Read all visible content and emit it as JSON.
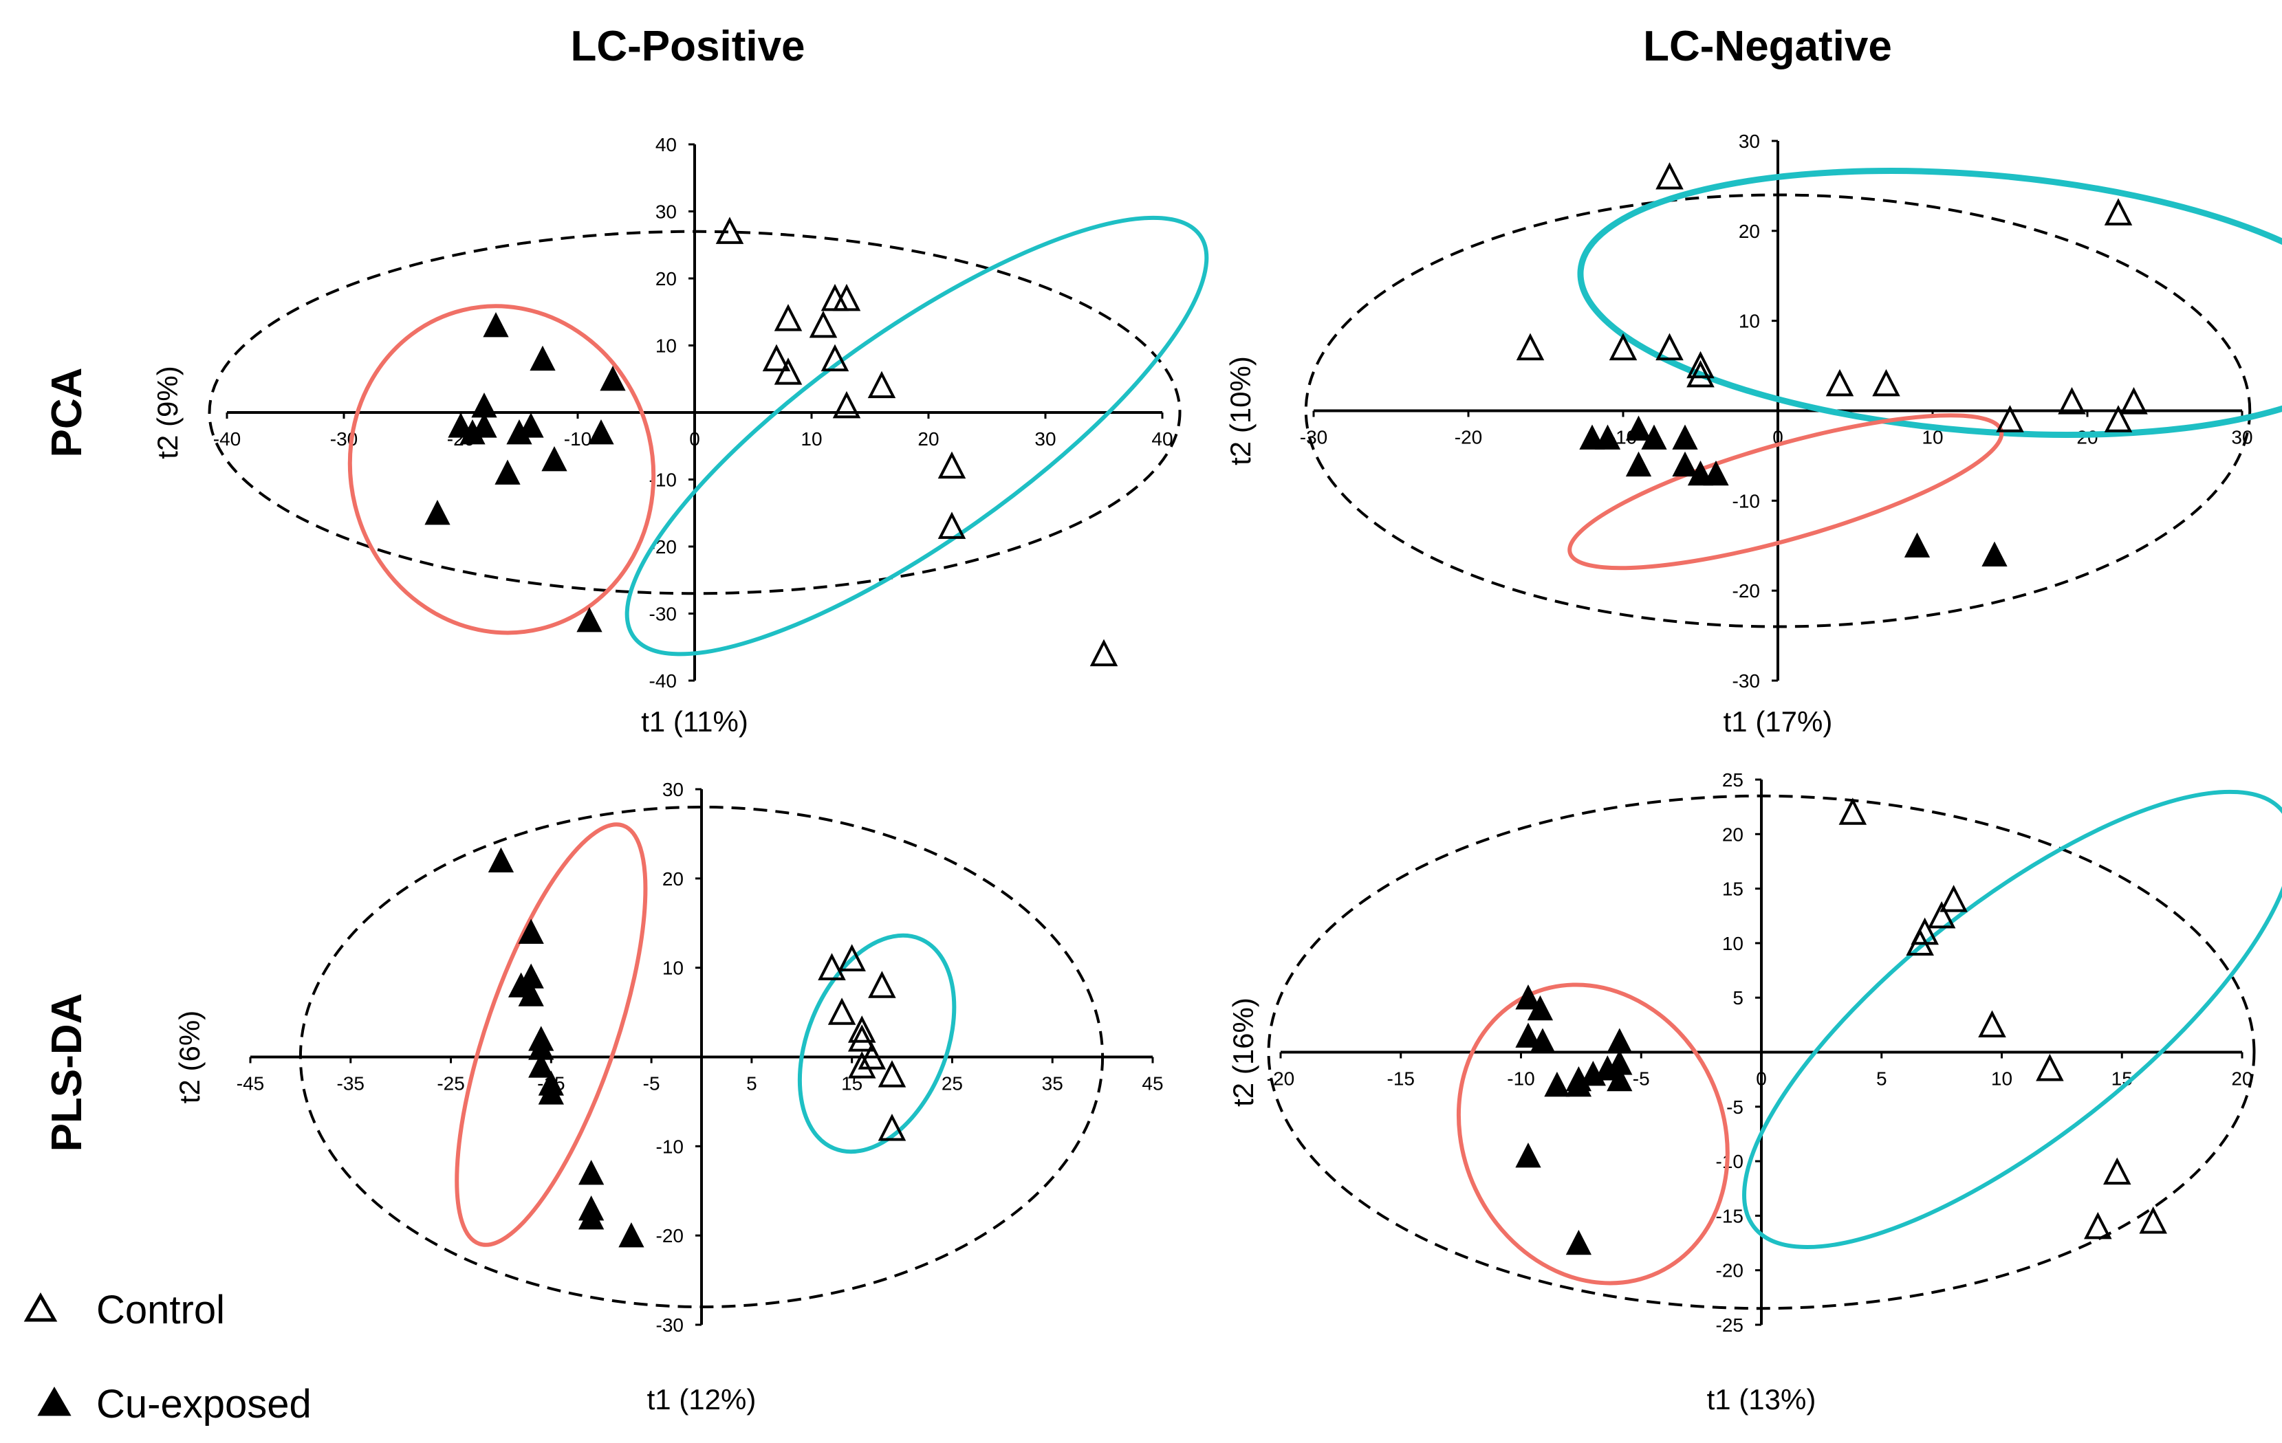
{
  "columns": [
    "LC-Positive",
    "LC-Negative"
  ],
  "rows": [
    "PCA",
    "PLS-DA"
  ],
  "legend": [
    {
      "label": "Control",
      "marker": "open-triangle"
    },
    {
      "label": "Cu-exposed",
      "marker": "filled-triangle"
    }
  ],
  "colors": {
    "control_group": "#1ebfc4",
    "exposed_group": "#f07066",
    "axis": "#000000",
    "hotelling": "#000000"
  },
  "chart_data": [
    {
      "type": "scatter",
      "method": "PCA",
      "title": "LC-Positive",
      "xlabel": "t1 (11%)",
      "ylabel": "t2 (9%)",
      "xlim": [
        -40,
        40
      ],
      "ylim": [
        -40,
        40
      ],
      "xticks": [
        -40,
        -30,
        -20,
        -10,
        0,
        10,
        20,
        30,
        40
      ],
      "yticks": [
        -40,
        -30,
        -20,
        -10,
        0,
        10,
        20,
        30,
        40
      ],
      "hotelling_ellipse": {
        "cx": 0,
        "cy": 0,
        "rx": 41.5,
        "ry": 27
      },
      "series": [
        {
          "name": "Control",
          "points": [
            [
              3,
              27
            ],
            [
              8,
              14
            ],
            [
              7,
              8
            ],
            [
              8,
              6
            ],
            [
              11,
              13
            ],
            [
              12,
              17
            ],
            [
              12,
              8
            ],
            [
              13,
              17
            ],
            [
              13,
              1
            ],
            [
              16,
              4
            ],
            [
              22,
              -8
            ],
            [
              22,
              -17
            ],
            [
              35,
              -36
            ]
          ]
        },
        {
          "name": "Cu-exposed",
          "points": [
            [
              -17,
              13
            ],
            [
              -13,
              8
            ],
            [
              -7,
              5
            ],
            [
              -18,
              1
            ],
            [
              -20,
              -2
            ],
            [
              -18,
              -2
            ],
            [
              -14,
              -2
            ],
            [
              -15,
              -3
            ],
            [
              -8,
              -3
            ],
            [
              -19,
              -3
            ],
            [
              -12,
              -7
            ],
            [
              -16,
              -9
            ],
            [
              -22,
              -15
            ],
            [
              -9,
              -31
            ]
          ]
        }
      ],
      "group_ellipses": [
        {
          "group": "Control",
          "cx": 19,
          "cy": -3.5,
          "rx": 38.5,
          "ry": 10.5,
          "angle": 51
        },
        {
          "group": "Cu-exposed",
          "cx": -16.5,
          "cy": -8.5,
          "rx": 24,
          "ry": 13,
          "angle": 98
        }
      ]
    },
    {
      "type": "scatter",
      "method": "PCA",
      "title": "LC-Negative",
      "xlabel": "t1 (17%)",
      "ylabel": "t2 (10%)",
      "xlim": [
        -30,
        30
      ],
      "ylim": [
        -30,
        30
      ],
      "xticks": [
        -30,
        -20,
        -10,
        0,
        10,
        20,
        30
      ],
      "yticks": [
        -30,
        -20,
        -10,
        0,
        10,
        20,
        30
      ],
      "hotelling_ellipse": {
        "cx": 0,
        "cy": 0,
        "rx": 30.5,
        "ry": 24
      },
      "series": [
        {
          "name": "Control",
          "points": [
            [
              -7,
              26
            ],
            [
              22,
              22
            ],
            [
              -16,
              7
            ],
            [
              -10,
              7
            ],
            [
              -7,
              7
            ],
            [
              -5,
              5
            ],
            [
              -5,
              4
            ],
            [
              4,
              3
            ],
            [
              7,
              3
            ],
            [
              15,
              -1
            ],
            [
              19,
              1
            ],
            [
              23,
              1
            ],
            [
              22,
              -1
            ]
          ]
        },
        {
          "name": "Cu-exposed",
          "points": [
            [
              -12,
              -3
            ],
            [
              -11,
              -3
            ],
            [
              -9,
              -2
            ],
            [
              -8,
              -3
            ],
            [
              -6,
              -3
            ],
            [
              -9,
              -6
            ],
            [
              -6,
              -6
            ],
            [
              -5,
              -7
            ],
            [
              -4,
              -7
            ],
            [
              9,
              -15
            ],
            [
              14,
              -16
            ]
          ]
        }
      ],
      "group_ellipses": [
        {
          "group": "Control",
          "cx": 13,
          "cy": 12,
          "rx": 26,
          "ry": 14,
          "angle": -8
        },
        {
          "group": "Cu-exposed",
          "cx": 0.5,
          "cy": -9,
          "rx": 15.5,
          "ry": 4.5,
          "angle": 26
        }
      ]
    },
    {
      "type": "scatter",
      "method": "PLS-DA",
      "title": "LC-Positive",
      "xlabel": "t1 (12%)",
      "ylabel": "t2 (6%)",
      "xlim": [
        -45,
        45
      ],
      "ylim": [
        -30,
        30
      ],
      "xticks": [
        -45,
        -35,
        -25,
        -15,
        -5,
        5,
        15,
        25,
        35,
        45
      ],
      "yticks": [
        -30,
        -20,
        -10,
        0,
        10,
        20,
        30
      ],
      "hotelling_ellipse": {
        "cx": 0,
        "cy": 0,
        "rx": 40,
        "ry": 28
      },
      "series": [
        {
          "name": "Control",
          "points": [
            [
              15,
              11
            ],
            [
              13,
              10
            ],
            [
              18,
              8
            ],
            [
              14,
              5
            ],
            [
              16,
              3
            ],
            [
              16,
              2
            ],
            [
              17,
              0
            ],
            [
              19,
              -2
            ],
            [
              16,
              -1
            ],
            [
              19,
              -8
            ]
          ]
        },
        {
          "name": "Cu-exposed",
          "points": [
            [
              -20,
              22
            ],
            [
              -17,
              14
            ],
            [
              -17,
              9
            ],
            [
              -18,
              8
            ],
            [
              -17,
              7
            ],
            [
              -16,
              2
            ],
            [
              -16,
              1
            ],
            [
              -16,
              -1
            ],
            [
              -15,
              -3
            ],
            [
              -15,
              -4
            ],
            [
              -11,
              -13
            ],
            [
              -11,
              -17
            ],
            [
              -11,
              -18
            ],
            [
              -7,
              -20
            ]
          ]
        }
      ],
      "group_ellipses": [
        {
          "group": "Control",
          "cx": 17.5,
          "cy": 1.5,
          "rx": 12.5,
          "ry": 7,
          "angle": 70
        },
        {
          "group": "Cu-exposed",
          "cx": -15,
          "cy": 2.5,
          "rx": 24.5,
          "ry": 6.5,
          "angle": 73
        }
      ]
    },
    {
      "type": "scatter",
      "method": "PLS-DA",
      "title": "LC-Negative",
      "xlabel": "t1 (13%)",
      "ylabel": "t2 (16%)",
      "xlim": [
        -20,
        20
      ],
      "ylim": [
        -25,
        25
      ],
      "xticks": [
        -20,
        -15,
        -10,
        -5,
        0,
        5,
        10,
        15,
        20
      ],
      "yticks": [
        -25,
        -20,
        -15,
        -10,
        -5,
        0,
        5,
        10,
        15,
        20,
        25
      ],
      "hotelling_ellipse": {
        "cx": 0,
        "cy": 0,
        "rx": 20.5,
        "ry": 23.5
      },
      "series": [
        {
          "name": "Control",
          "points": [
            [
              3.8,
              22
            ],
            [
              8,
              14
            ],
            [
              7.5,
              12.5
            ],
            [
              6.8,
              11
            ],
            [
              6.6,
              10
            ],
            [
              9.6,
              2.5
            ],
            [
              12,
              -1.5
            ],
            [
              14.8,
              -11
            ],
            [
              14,
              -16
            ],
            [
              16.3,
              -15.5
            ]
          ]
        },
        {
          "name": "Cu-exposed",
          "points": [
            [
              -9.7,
              5
            ],
            [
              -9.2,
              4
            ],
            [
              -9.7,
              1.5
            ],
            [
              -9.1,
              1
            ],
            [
              -5.9,
              1
            ],
            [
              -8.5,
              -3
            ],
            [
              -7.6,
              -3
            ],
            [
              -7.6,
              -2.5
            ],
            [
              -7,
              -2
            ],
            [
              -6.4,
              -1.5
            ],
            [
              -5.9,
              -1
            ],
            [
              -5.9,
              -2.5
            ],
            [
              -9.7,
              -9.5
            ],
            [
              -7.6,
              -17.5
            ]
          ]
        }
      ],
      "group_ellipses": [
        {
          "group": "Control",
          "cx": 10.7,
          "cy": 3,
          "rx": 22,
          "ry": 5.5,
          "angle": 60
        },
        {
          "group": "Cu-exposed",
          "cx": -7,
          "cy": -7.5,
          "rx": 13,
          "ry": 5.5,
          "angle": 102
        }
      ]
    }
  ]
}
